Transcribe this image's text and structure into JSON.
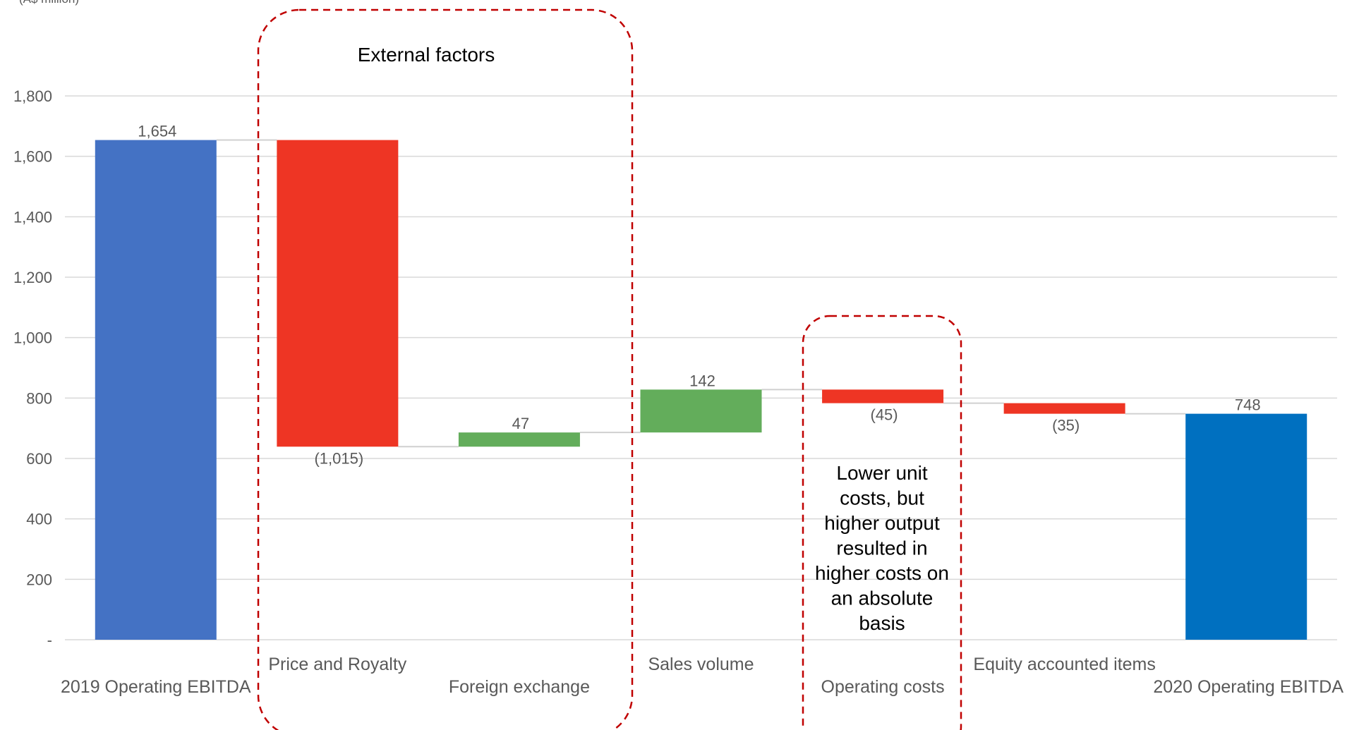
{
  "chart_data": {
    "type": "bar",
    "subtype": "waterfall",
    "unit_label": "(A$ million)",
    "categories": [
      "2019 Operating EBITDA",
      "Price and Royalty",
      "Foreign exchange",
      "Sales volume",
      "Operating costs",
      "Equity accounted items",
      "2020 Operating EBITDA"
    ],
    "values": [
      1654,
      -1015,
      47,
      142,
      -45,
      -35,
      748
    ],
    "kinds": [
      "total",
      "delta",
      "delta",
      "delta",
      "delta",
      "delta",
      "total"
    ],
    "data_labels": [
      "1,654",
      "(1,015)",
      "47",
      "142",
      "(45)",
      "(35)",
      "748"
    ],
    "ylim": [
      0,
      1800
    ],
    "y_ticks": [
      0,
      200,
      400,
      600,
      800,
      1000,
      1200,
      1400,
      1600,
      1800
    ],
    "y_tick_labels": [
      "-",
      "200",
      "400",
      "600",
      "800",
      "1,000",
      "1,200",
      "1,400",
      "1,600",
      "1,800"
    ],
    "grid": true,
    "legend": "none",
    "colors": {
      "start_total": "#4472C4",
      "end_total": "#0070C0",
      "decrease": "#EE3524",
      "increase": "#63AD5B",
      "grid": "#D9D9D9",
      "annotation_box": "#C00000"
    },
    "annotations": [
      {
        "text": "External factors",
        "groups": [
          "Price and Royalty",
          "Foreign exchange"
        ]
      },
      {
        "lines": [
          "Lower unit",
          "costs, but",
          "higher output",
          "resulted in",
          "higher costs on",
          "an absolute",
          "basis"
        ],
        "groups": [
          "Operating costs"
        ]
      }
    ]
  }
}
